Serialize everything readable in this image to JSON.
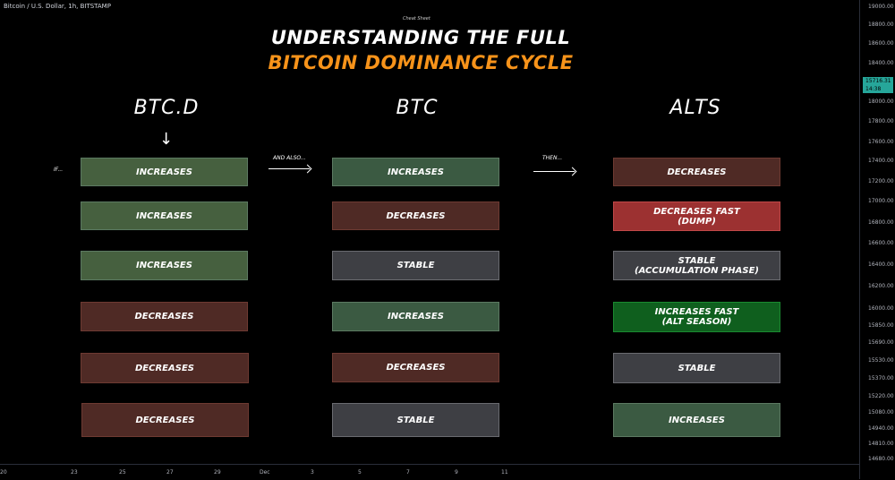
{
  "symbol": "Bitcoin / U.S. Dollar, 1h, BITSTAMP",
  "subtitle": "Cheat Sheet",
  "title_line1": "UNDERSTANDING THE FULL",
  "title_line2": "BITCOIN DOMINANCE CYCLE",
  "columns": {
    "btcd": "BTC.D",
    "btc": "BTC",
    "alts": "ALTS"
  },
  "labels": {
    "if": "IF...",
    "and_also": "AND ALSO...",
    "then": "THEN..."
  },
  "rows": [
    {
      "btcd": "INCREASES",
      "btc": "INCREASES",
      "alts": "DECREASES"
    },
    {
      "btcd": "INCREASES",
      "btc": "DECREASES",
      "alts": "DECREASES FAST\n(DUMP)"
    },
    {
      "btcd": "INCREASES",
      "btc": "STABLE",
      "alts": "STABLE\n(ACCUMULATION PHASE)"
    },
    {
      "btcd": "DECREASES",
      "btc": "INCREASES",
      "alts": "INCREASES FAST\n(ALT SEASON)"
    },
    {
      "btcd": "DECREASES",
      "btc": "DECREASES",
      "alts": "STABLE"
    },
    {
      "btcd": "DECREASES",
      "btc": "STABLE",
      "alts": "INCREASES"
    }
  ],
  "colors": {
    "accent": "#f7931a",
    "price_tag": "#26a69a"
  },
  "price_axis": [
    "19000.00",
    "18800.00",
    "18600.00",
    "18400.00",
    "18000.00",
    "17800.00",
    "17600.00",
    "17400.00",
    "17200.00",
    "17000.00",
    "16800.00",
    "16600.00",
    "16400.00",
    "16200.00",
    "16000.00",
    "15850.00",
    "15690.00",
    "15530.00",
    "15370.00",
    "15220.00",
    "15080.00",
    "14940.00",
    "14810.00",
    "14680.00"
  ],
  "price_tags": {
    "last": "15716.31",
    "countdown": "14:38"
  },
  "time_axis": [
    "20",
    "23",
    "25",
    "27",
    "29",
    "Dec",
    "3",
    "5",
    "7",
    "9",
    "11"
  ]
}
